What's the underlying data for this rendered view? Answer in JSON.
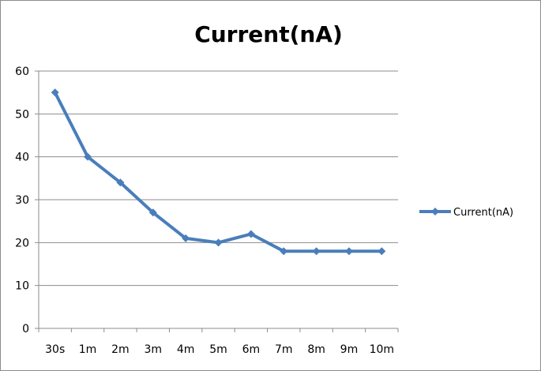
{
  "chart_data": {
    "type": "line",
    "title": "Current(nA)",
    "xlabel": "",
    "ylabel": "",
    "categories": [
      "30s",
      "1m",
      "2m",
      "3m",
      "4m",
      "5m",
      "6m",
      "7m",
      "8m",
      "9m",
      "10m"
    ],
    "series": [
      {
        "name": "Current(nA)",
        "values": [
          55,
          40,
          34,
          27,
          21,
          20,
          22,
          18,
          18,
          18,
          18
        ],
        "color": "#4a7ebb",
        "marker": "diamond"
      }
    ],
    "ylim": [
      0,
      60
    ],
    "yticks": [
      "0",
      "10",
      "20",
      "30",
      "40",
      "50",
      "60"
    ],
    "grid": true,
    "legend_position": "right"
  }
}
